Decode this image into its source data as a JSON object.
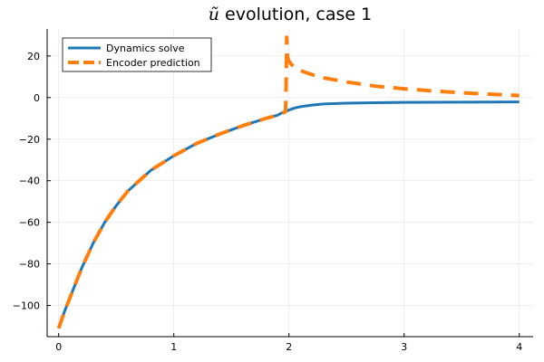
{
  "chart_data": {
    "type": "line",
    "title": {
      "symbol": "ũ",
      "text": " evolution, case 1"
    },
    "xlabel": "",
    "ylabel": "",
    "xlim": [
      -0.1,
      4.12
    ],
    "ylim": [
      -115,
      33
    ],
    "x_ticks": [
      0,
      1,
      2,
      3,
      4
    ],
    "y_ticks": [
      20,
      0,
      -20,
      -40,
      -60,
      -80,
      -100
    ],
    "x_tick_labels": [
      "0",
      "1",
      "2",
      "3",
      "4"
    ],
    "y_tick_labels": [
      "20",
      "0",
      "−20",
      "−40",
      "−60",
      "−80",
      "−100"
    ],
    "grid": true,
    "legend_position": "top-left",
    "series": [
      {
        "name": "Dynamics solve",
        "color": "#1f77b4",
        "style": "solid",
        "x": [
          0,
          0.05,
          0.1,
          0.2,
          0.3,
          0.4,
          0.5,
          0.6,
          0.8,
          1.0,
          1.2,
          1.4,
          1.6,
          1.8,
          1.9,
          1.95,
          2.0,
          2.05,
          2.1,
          2.2,
          2.3,
          2.5,
          2.75,
          3.0,
          3.5,
          4.0
        ],
        "y": [
          -111,
          -103,
          -96,
          -82,
          -70,
          -60,
          -52,
          -45,
          -35,
          -28,
          -22,
          -17.5,
          -13.5,
          -10,
          -8.5,
          -7,
          -6,
          -5,
          -4.4,
          -3.6,
          -3.1,
          -2.7,
          -2.5,
          -2.3,
          -2.2,
          -2.1
        ]
      },
      {
        "name": "Encoder prediction",
        "color": "#ff7f0e",
        "style": "dashed",
        "x": [
          0,
          0.05,
          0.1,
          0.2,
          0.3,
          0.4,
          0.5,
          0.6,
          0.8,
          1.0,
          1.2,
          1.4,
          1.6,
          1.8,
          1.9,
          1.97,
          1.975,
          1.98,
          1.985,
          1.99,
          2.0,
          2.02,
          2.05,
          2.1,
          2.2,
          2.3,
          2.5,
          2.75,
          3.0,
          3.25,
          3.5,
          3.75,
          4.0
        ],
        "y": [
          -111,
          -103,
          -96,
          -82,
          -70,
          -60,
          -52,
          -45,
          -35,
          -28,
          -22,
          -17.5,
          -13.5,
          -10,
          -8.5,
          -6.8,
          6,
          29,
          21,
          19,
          17.5,
          16,
          14.5,
          13,
          11,
          9.5,
          7.5,
          5.5,
          4.2,
          3.2,
          2.3,
          1.6,
          1
        ]
      }
    ]
  }
}
